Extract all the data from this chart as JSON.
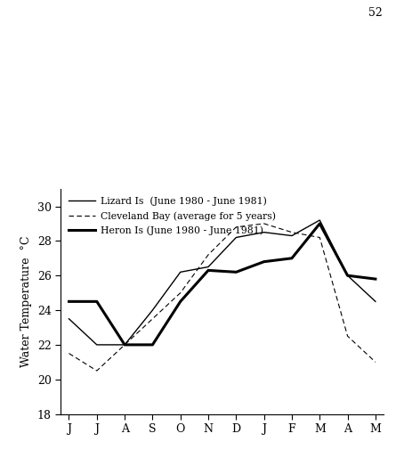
{
  "months": [
    "J",
    "J",
    "A",
    "S",
    "O",
    "N",
    "D",
    "J",
    "F",
    "M",
    "A",
    "M"
  ],
  "lizard_is": [
    23.5,
    22.0,
    22.0,
    24.0,
    26.2,
    26.5,
    28.2,
    28.5,
    28.3,
    29.2,
    26.0,
    24.5
  ],
  "cleveland_bay": [
    21.5,
    20.5,
    22.0,
    23.5,
    25.0,
    27.2,
    28.8,
    29.0,
    28.5,
    28.2,
    22.5,
    21.0
  ],
  "heron_is": [
    24.5,
    24.5,
    22.0,
    22.0,
    24.5,
    26.3,
    26.2,
    26.8,
    27.0,
    29.0,
    26.0,
    25.8
  ],
  "ylim": [
    18,
    31
  ],
  "yticks": [
    18,
    20,
    22,
    24,
    26,
    28,
    30
  ],
  "legend": [
    "Lizard Is  (June 1980 - June 1981)",
    "Cleveland Bay (average for 5 years)",
    "Heron Is (June 1980 - June 1981)"
  ],
  "ylabel": "Water Temperature  °C",
  "page_number": "52"
}
